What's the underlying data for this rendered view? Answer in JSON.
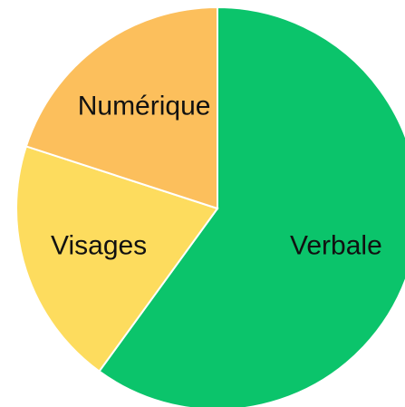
{
  "chart_data": {
    "type": "pie",
    "categories": [
      "Verbale",
      "Visages",
      "Numérique"
    ],
    "values": [
      60,
      20,
      20
    ],
    "colors": [
      "#0bc46b",
      "#fddc5e",
      "#fcbf5c"
    ]
  }
}
